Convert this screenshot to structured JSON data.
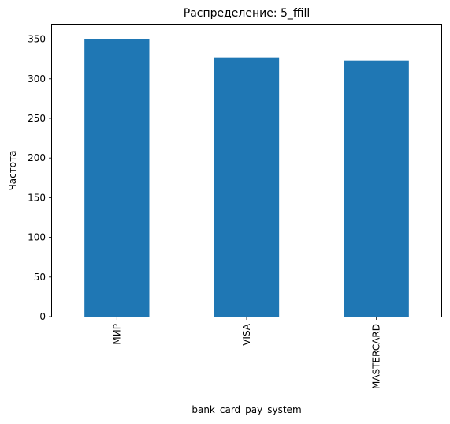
{
  "chart_data": {
    "type": "bar",
    "title": "Распределение: 5_ffill",
    "xlabel": "bank_card_pay_system",
    "ylabel": "Частота",
    "categories": [
      "МИР",
      "VISA",
      "MASTERCARD"
    ],
    "values": [
      350,
      327,
      323
    ],
    "ylim": [
      0,
      367.5
    ],
    "yticks": [
      0,
      50,
      100,
      150,
      200,
      250,
      300,
      350
    ],
    "grid": false,
    "bar_color": "#1f77b4"
  }
}
